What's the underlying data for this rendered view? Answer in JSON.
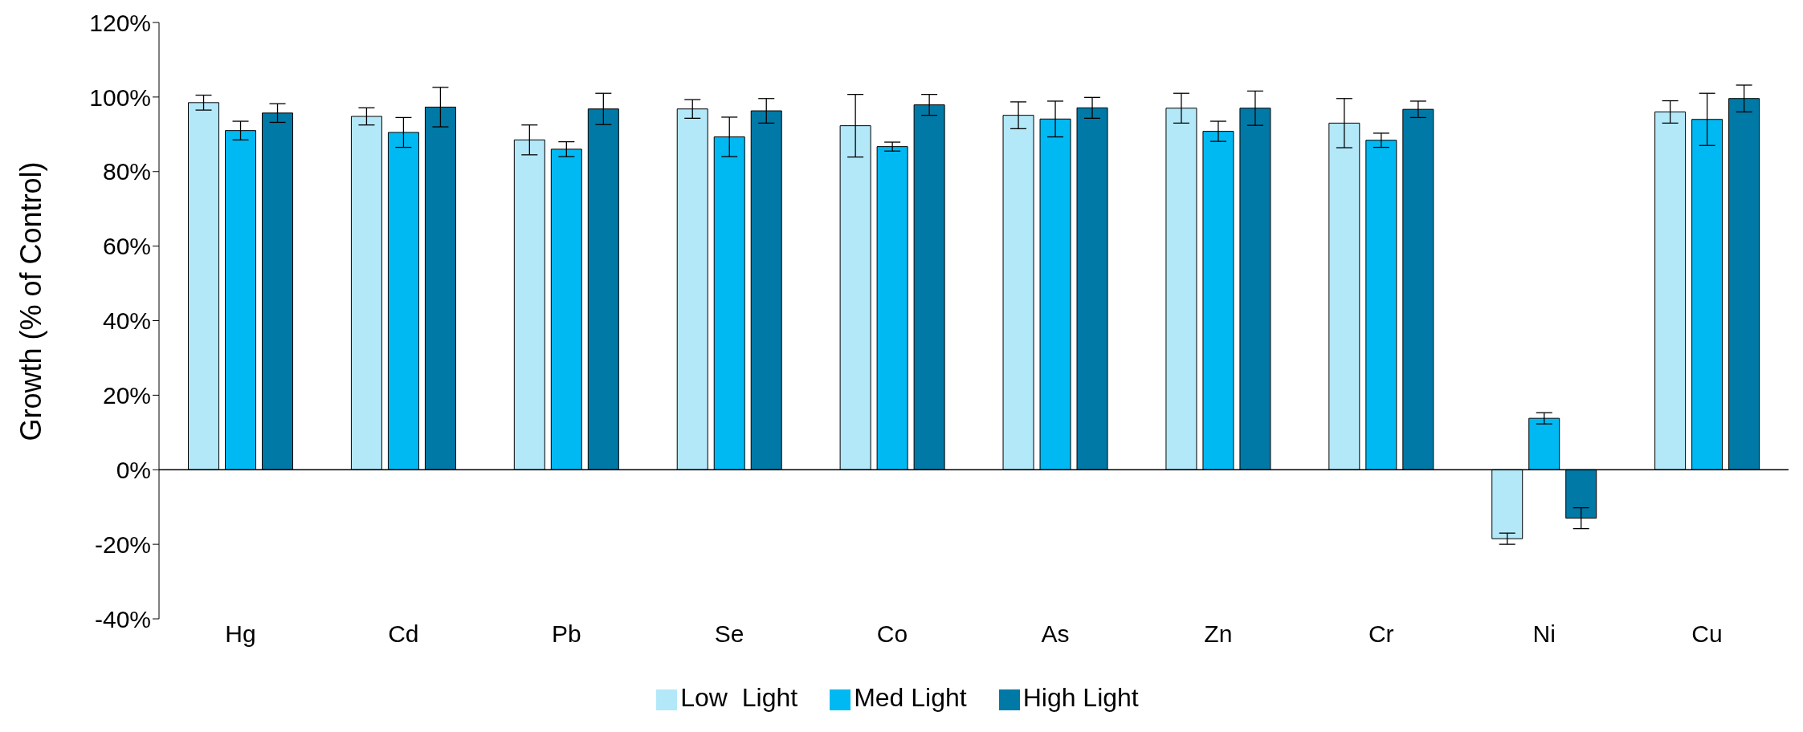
{
  "chart_data": {
    "type": "bar",
    "ylabel": "Growth (% of Control)",
    "categories": [
      "Hg",
      "Cd",
      "Pb",
      "Se",
      "Co",
      "As",
      "Zn",
      "Cr",
      "Ni",
      "Cu"
    ],
    "series": [
      {
        "name": "Low  Light",
        "color": "#b3e8f9",
        "values": [
          98.5,
          94.8,
          88.5,
          96.8,
          92.3,
          95.1,
          97,
          93,
          -18.5,
          96
        ],
        "errors": [
          2,
          2.3,
          4,
          2.5,
          8.4,
          3.6,
          4,
          6.6,
          1.5,
          3
        ]
      },
      {
        "name": "Med Light",
        "color": "#00b9f2",
        "values": [
          91,
          90.5,
          86,
          89.3,
          86.7,
          94.1,
          90.8,
          88.4,
          13.8,
          94
        ],
        "errors": [
          2.5,
          4,
          2,
          5.3,
          1.2,
          4.8,
          2.7,
          1.9,
          1.5,
          7
        ]
      },
      {
        "name": "High Light",
        "color": "#0079a6",
        "values": [
          95.7,
          97.3,
          96.8,
          96.3,
          97.9,
          97.1,
          97,
          96.7,
          -13,
          99.6
        ],
        "errors": [
          2.5,
          5.3,
          4.2,
          3.3,
          2.8,
          2.8,
          4.6,
          2.2,
          2.8,
          3.6
        ]
      }
    ],
    "ylim": [
      -40,
      120
    ],
    "yticks": [
      {
        "value": -40,
        "label": "-40%"
      },
      {
        "value": -20,
        "label": "-20%"
      },
      {
        "value": 0,
        "label": "0%"
      },
      {
        "value": 20,
        "label": "20%"
      },
      {
        "value": 40,
        "label": "40%"
      },
      {
        "value": 60,
        "label": "60%"
      },
      {
        "value": 80,
        "label": "80%"
      },
      {
        "value": 100,
        "label": "100%"
      },
      {
        "value": 120,
        "label": "120%"
      }
    ],
    "legend": "bottom"
  }
}
